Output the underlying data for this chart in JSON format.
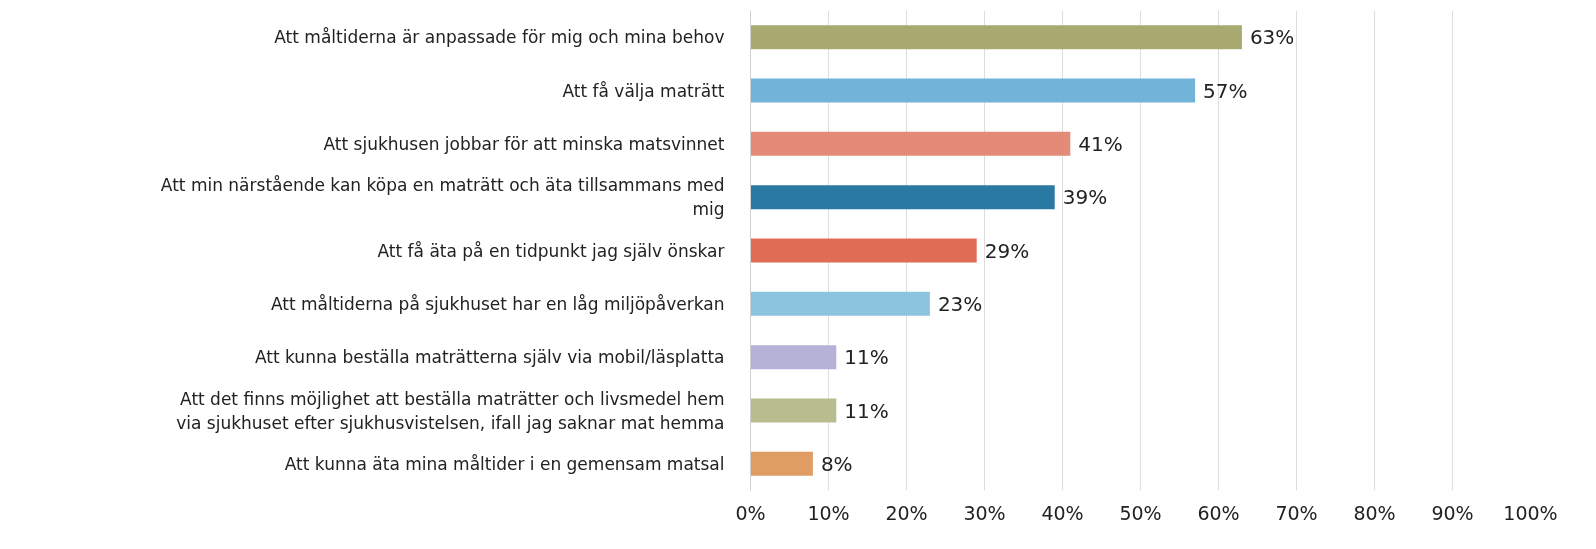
{
  "chart_data": {
    "type": "bar",
    "orientation": "horizontal",
    "categories": [
      "Att måltiderna är anpassade för mig och mina behov",
      "Att få välja maträtt",
      "Att sjukhusen jobbar för att minska matsvinnet",
      "Att min närstående kan köpa en maträtt och äta tillsammans med mig",
      "Att få äta på en tidpunkt jag själv önskar",
      "Att måltiderna på sjukhuset har en låg miljöpåverkan",
      "Att kunna beställa maträtterna själv via mobil/läsplatta",
      "Att det finns möjlighet att beställa maträtter och livsmedel hem via sjukhuset efter sjukhusvistelsen, ifall jag saknar mat hemma",
      "Att kunna äta mina måltider i en gemensam matsal"
    ],
    "values": [
      63,
      57,
      41,
      39,
      29,
      23,
      11,
      11,
      8
    ],
    "value_labels": [
      "63%",
      "57%",
      "41%",
      "39%",
      "29%",
      "23%",
      "11%",
      "11%",
      "8%"
    ],
    "colors": [
      "#a9aa72",
      "#72b4d9",
      "#e48a78",
      "#2a79a3",
      "#e06c55",
      "#8cc4e0",
      "#b6b1d6",
      "#b8bd8f",
      "#e09d63"
    ],
    "xlim": [
      0,
      100
    ],
    "xticks": [
      {
        "value": 0,
        "label": "0%"
      },
      {
        "value": 10,
        "label": "10%"
      },
      {
        "value": 20,
        "label": "20%"
      },
      {
        "value": 30,
        "label": "30%"
      },
      {
        "value": 40,
        "label": "40%"
      },
      {
        "value": 50,
        "label": "50%"
      },
      {
        "value": 60,
        "label": "60%"
      },
      {
        "value": 70,
        "label": "70%"
      },
      {
        "value": 80,
        "label": "80%"
      },
      {
        "value": 90,
        "label": "90%"
      },
      {
        "value": 100,
        "label": "100%"
      }
    ],
    "grid": "x"
  }
}
